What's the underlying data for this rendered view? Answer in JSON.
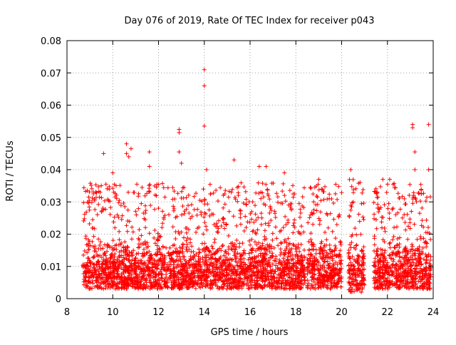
{
  "chart_data": {
    "type": "scatter",
    "title": "Day 076 of 2019, Rate Of TEC Index for receiver p043",
    "xlabel": "GPS time / hours",
    "ylabel": "ROTI / TECUs",
    "xlim": [
      8,
      24
    ],
    "ylim": [
      0,
      0.08
    ],
    "x_ticks": [
      8,
      10,
      12,
      14,
      16,
      18,
      20,
      22,
      24
    ],
    "x_tick_labels": [
      "8",
      "10",
      "12",
      "14",
      "16",
      "18",
      "20",
      "22",
      "24"
    ],
    "y_ticks": [
      0,
      0.01,
      0.02,
      0.03,
      0.04,
      0.05,
      0.06,
      0.07,
      0.08
    ],
    "y_tick_labels": [
      "0",
      "0.01",
      "0.02",
      "0.03",
      "0.04",
      "0.05",
      "0.06",
      "0.07",
      "0.08"
    ],
    "grid": true,
    "marker": "+",
    "marker_color": "#ff0000",
    "series": [
      {
        "name": "ROTI",
        "segments": [
          {
            "x_start": 8.7,
            "x_end": 18.4,
            "typical_low": 0.003,
            "typical_high": 0.02
          },
          {
            "x_start": 18.5,
            "x_end": 20.0,
            "typical_low": 0.003,
            "typical_high": 0.02
          },
          {
            "x_start": 20.3,
            "x_end": 21.0,
            "typical_low": 0.002,
            "typical_high": 0.022
          },
          {
            "x_start": 21.4,
            "x_end": 23.9,
            "typical_low": 0.003,
            "typical_high": 0.02
          }
        ],
        "notable_points": [
          {
            "x": 9.6,
            "y": 0.045
          },
          {
            "x": 10.0,
            "y": 0.039
          },
          {
            "x": 10.6,
            "y": 0.048
          },
          {
            "x": 10.6,
            "y": 0.045
          },
          {
            "x": 10.7,
            "y": 0.044
          },
          {
            "x": 10.8,
            "y": 0.0465
          },
          {
            "x": 11.6,
            "y": 0.0455
          },
          {
            "x": 11.6,
            "y": 0.041
          },
          {
            "x": 12.9,
            "y": 0.0525
          },
          {
            "x": 12.9,
            "y": 0.0515
          },
          {
            "x": 12.9,
            "y": 0.0455
          },
          {
            "x": 13.0,
            "y": 0.042
          },
          {
            "x": 14.0,
            "y": 0.071
          },
          {
            "x": 14.0,
            "y": 0.066
          },
          {
            "x": 14.0,
            "y": 0.0535
          },
          {
            "x": 14.1,
            "y": 0.04
          },
          {
            "x": 15.3,
            "y": 0.043
          },
          {
            "x": 16.4,
            "y": 0.041
          },
          {
            "x": 16.7,
            "y": 0.041
          },
          {
            "x": 17.5,
            "y": 0.039
          },
          {
            "x": 19.0,
            "y": 0.037
          },
          {
            "x": 20.4,
            "y": 0.04
          },
          {
            "x": 21.8,
            "y": 0.037
          },
          {
            "x": 22.1,
            "y": 0.037
          },
          {
            "x": 23.1,
            "y": 0.054
          },
          {
            "x": 23.1,
            "y": 0.053
          },
          {
            "x": 23.2,
            "y": 0.0455
          },
          {
            "x": 23.2,
            "y": 0.04
          },
          {
            "x": 23.8,
            "y": 0.054
          },
          {
            "x": 23.8,
            "y": 0.04
          }
        ]
      }
    ]
  }
}
